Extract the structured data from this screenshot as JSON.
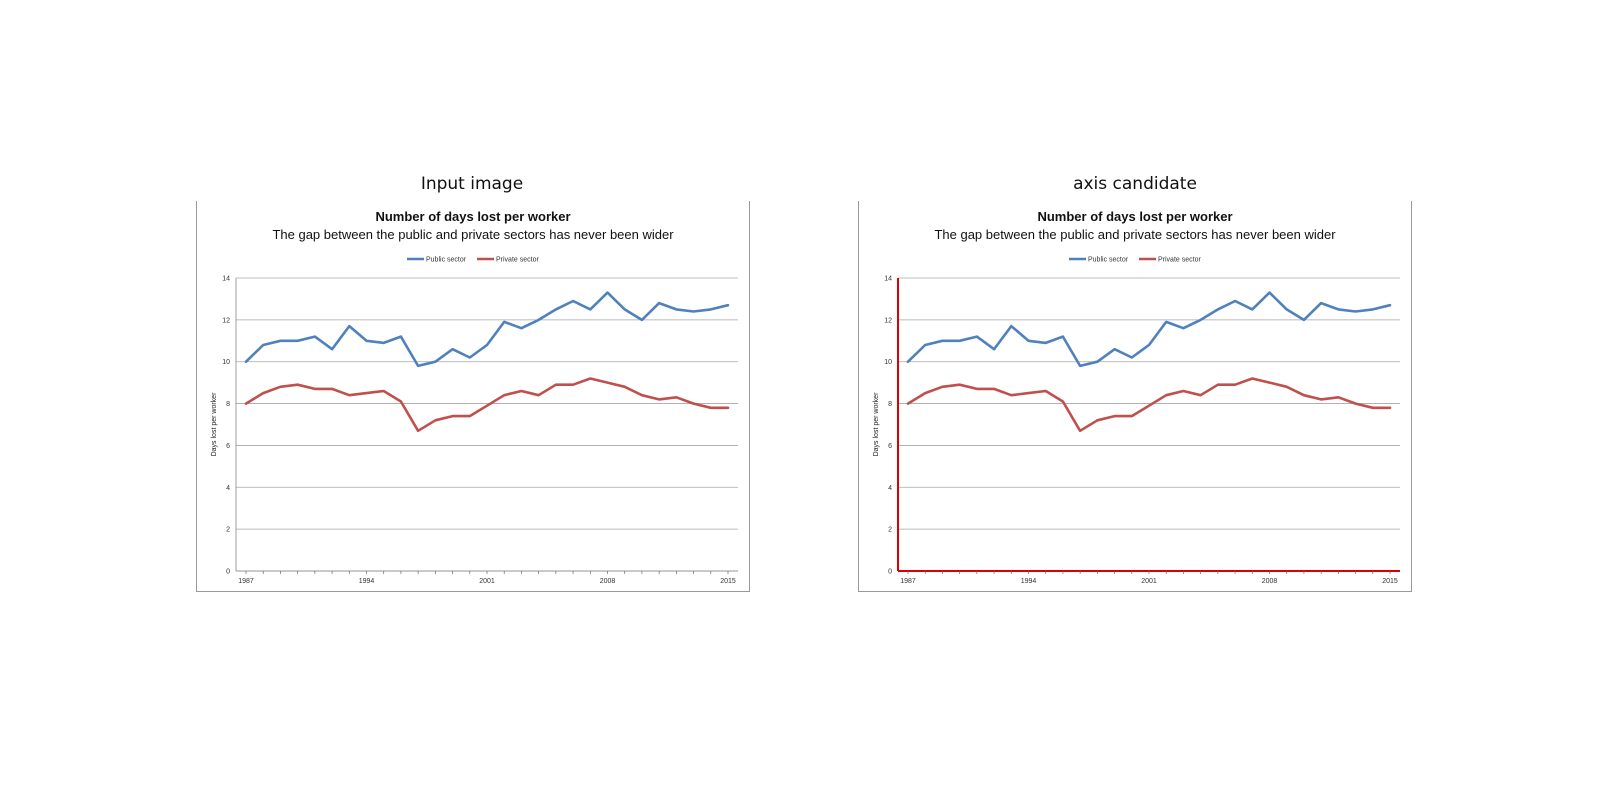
{
  "panels": [
    {
      "label": "Input image",
      "highlight_axes": false
    },
    {
      "label": "axis candidate",
      "highlight_axes": true
    }
  ],
  "colors": {
    "public": "#4f81bd",
    "private": "#c0504d",
    "axis_highlight": "#dd0000",
    "grid": "#a6a6a6"
  },
  "chart_data": {
    "type": "line",
    "title": "Number of days lost per worker",
    "subtitle": "The gap between the public and private sectors has never been wider",
    "ylabel": "Days lost per worker",
    "xlabel": "",
    "ylim": [
      0,
      14
    ],
    "yticks": [
      0,
      2,
      4,
      6,
      8,
      10,
      12,
      14
    ],
    "x_tick_labels": [
      "1987",
      "1994",
      "2001",
      "2008",
      "2015"
    ],
    "x_tick_label_positions": [
      0,
      7,
      14,
      21,
      28
    ],
    "legend": "top-center",
    "grid": true,
    "x": [
      1987,
      1988,
      1989,
      1990,
      1991,
      1992,
      1993,
      1994,
      1995,
      1996,
      1997,
      1998,
      1999,
      2000,
      2001,
      2002,
      2003,
      2004,
      2005,
      2006,
      2007,
      2008,
      2009,
      2010,
      2011,
      2012,
      2013,
      2014,
      2015
    ],
    "series": [
      {
        "name": "Public sector",
        "values": [
          10.0,
          10.8,
          11.0,
          11.0,
          11.2,
          10.6,
          11.7,
          11.0,
          10.9,
          11.2,
          9.8,
          10.0,
          10.6,
          10.2,
          10.8,
          11.9,
          11.6,
          12.0,
          12.5,
          12.9,
          12.5,
          13.3,
          12.5,
          12.0,
          12.8,
          12.5,
          12.4,
          12.5,
          12.7
        ]
      },
      {
        "name": "Private sector",
        "values": [
          8.0,
          8.5,
          8.8,
          8.9,
          8.7,
          8.7,
          8.4,
          8.5,
          8.6,
          8.1,
          6.7,
          7.2,
          7.4,
          7.4,
          7.9,
          8.4,
          8.6,
          8.4,
          8.9,
          8.9,
          9.2,
          9.0,
          8.8,
          8.4,
          8.2,
          8.3,
          8.0,
          7.8,
          7.8
        ]
      }
    ]
  }
}
